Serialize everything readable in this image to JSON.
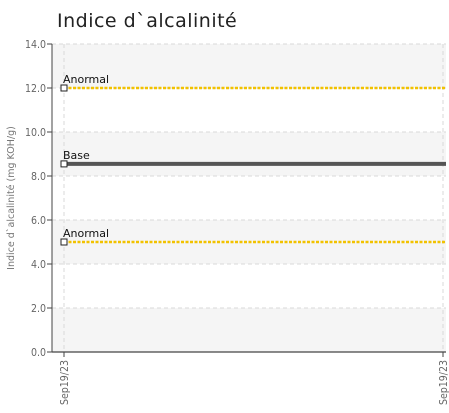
{
  "chart_data": {
    "type": "line",
    "title": "Indice d`alcalinité",
    "xlabel": "",
    "ylabel": "Indice d`alcalinité (mg KOH/g)",
    "ylim": [
      0,
      14
    ],
    "yticks": [
      "0.0",
      "2.0",
      "4.0",
      "6.0",
      "8.0",
      "10.0",
      "12.0",
      "14.0"
    ],
    "x": [
      "Sep19/23",
      "Sep19/23"
    ],
    "grid": true,
    "reference_lines": [
      {
        "label": "Anormal",
        "value": 12.0,
        "color": "#f2c200"
      },
      {
        "label": "Base",
        "value": 8.55,
        "color": "#555555"
      },
      {
        "label": "Anormal",
        "value": 5.0,
        "color": "#f2c200"
      }
    ],
    "series": []
  }
}
